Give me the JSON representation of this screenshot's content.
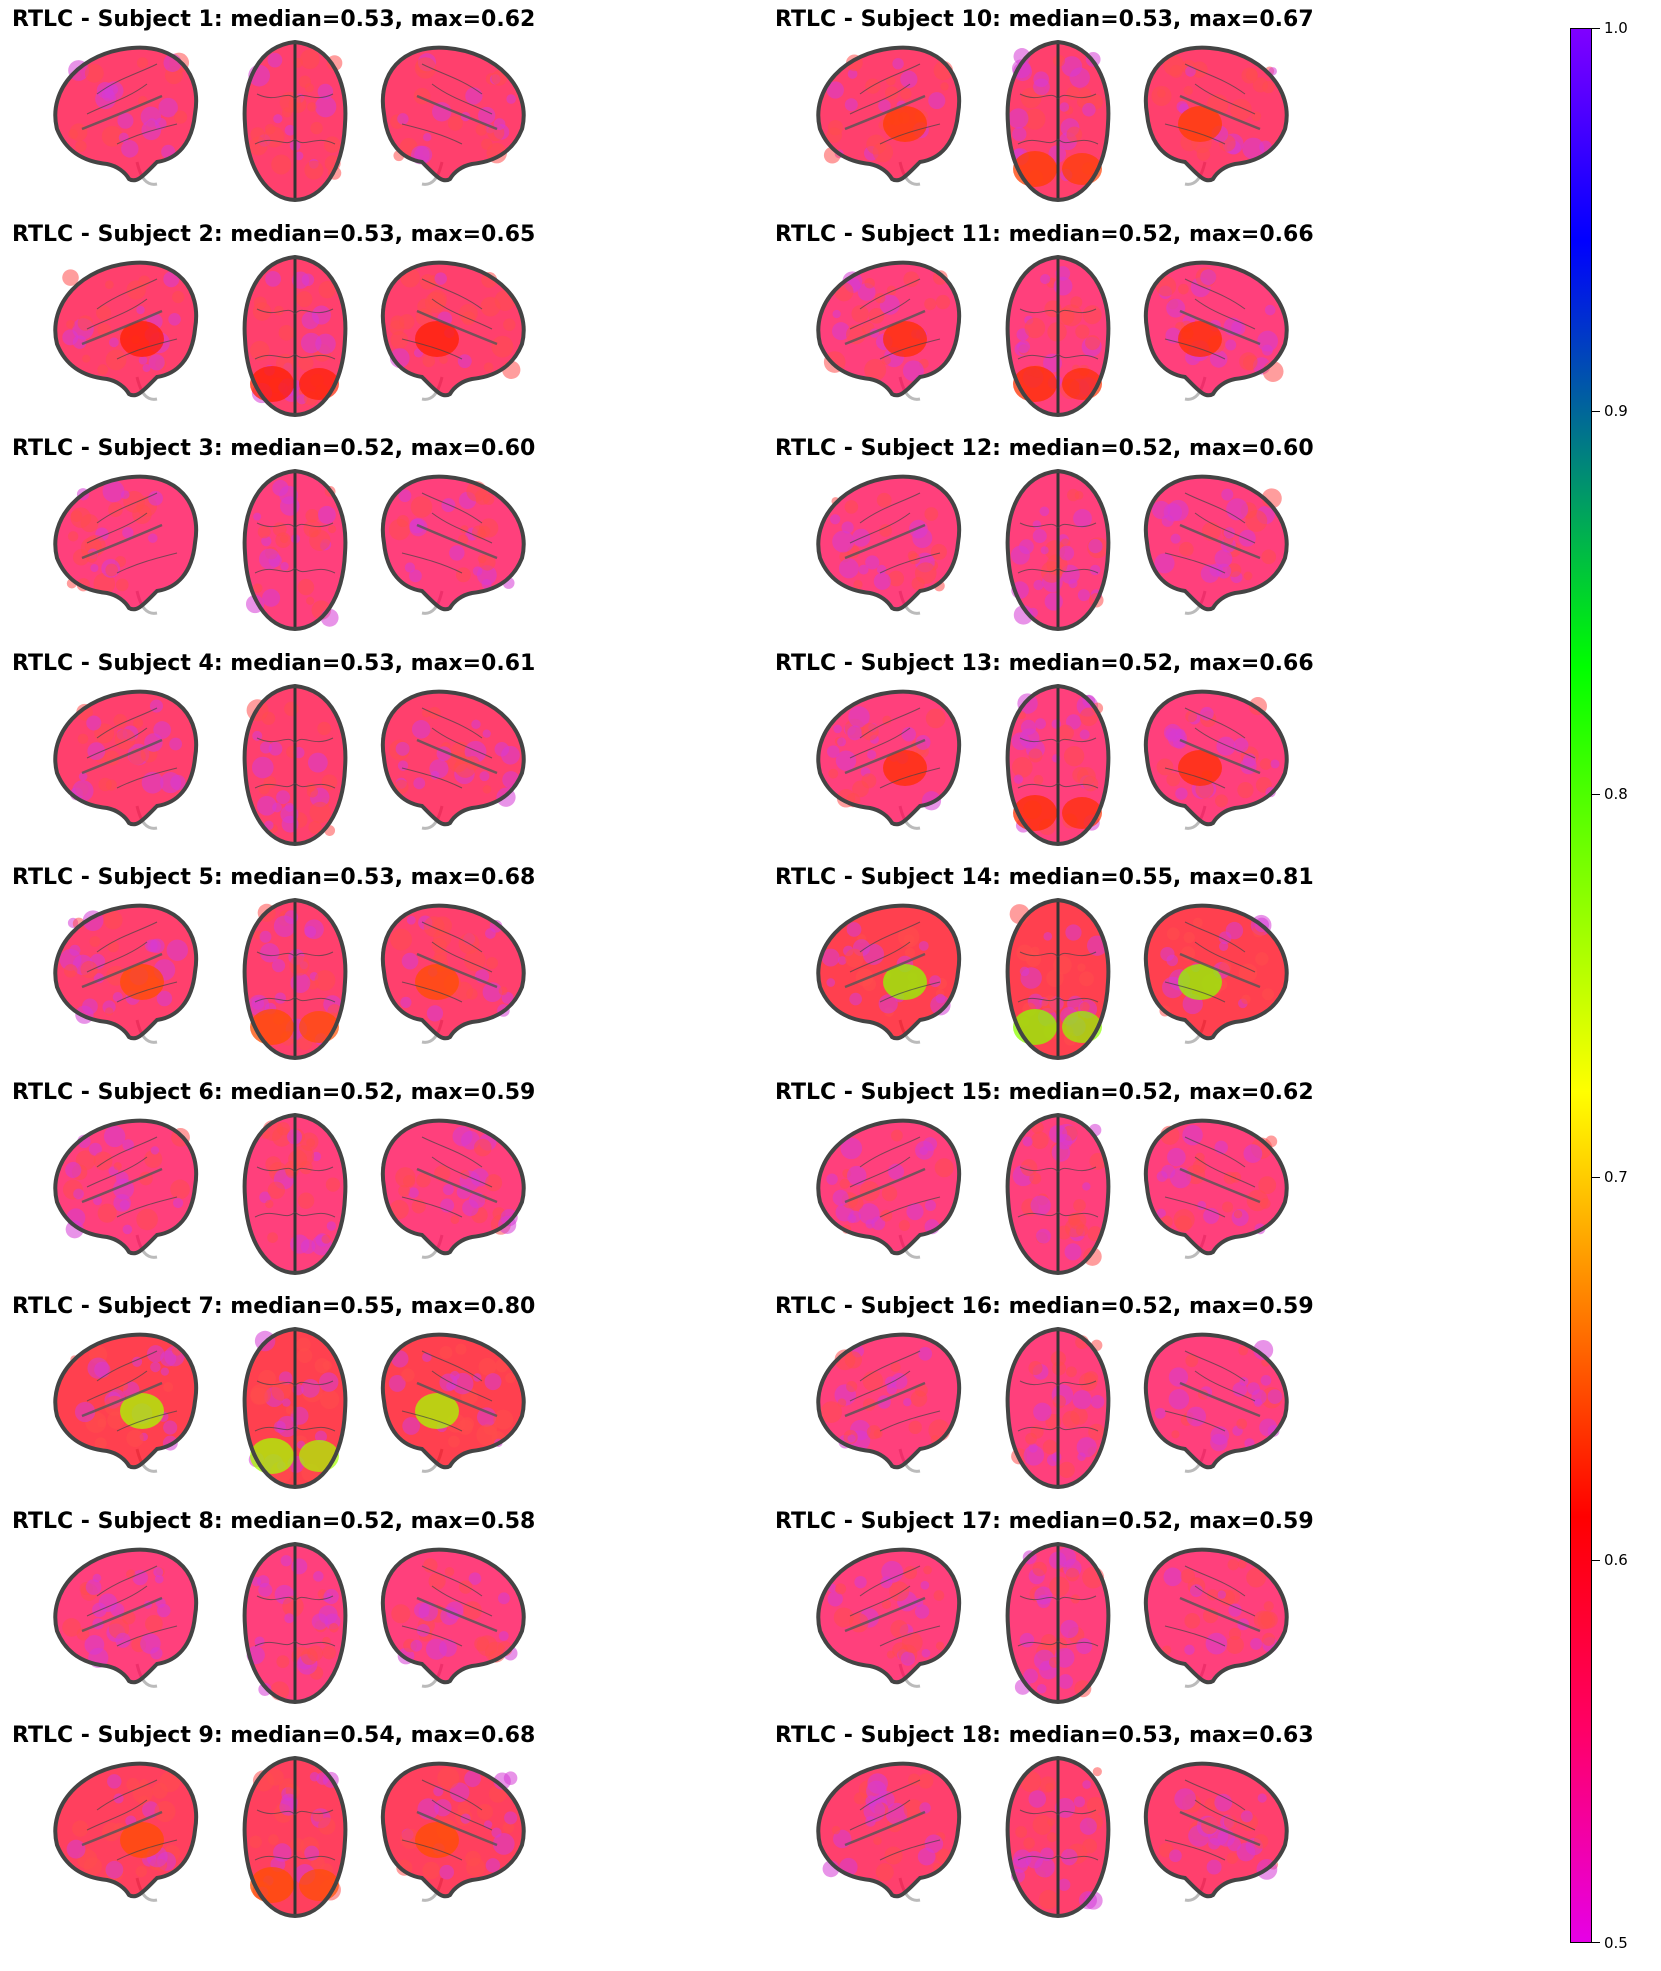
{
  "panels": [
    {
      "title": "RTLC - Subject 1: median=0.53, max=0.62",
      "median": 0.53,
      "max": 0.62
    },
    {
      "title": "RTLC - Subject 2: median=0.53, max=0.65",
      "median": 0.53,
      "max": 0.65
    },
    {
      "title": "RTLC - Subject 3: median=0.52, max=0.60",
      "median": 0.52,
      "max": 0.6
    },
    {
      "title": "RTLC - Subject 4: median=0.53, max=0.61",
      "median": 0.53,
      "max": 0.61
    },
    {
      "title": "RTLC - Subject 5: median=0.53, max=0.68",
      "median": 0.53,
      "max": 0.68
    },
    {
      "title": "RTLC - Subject 6: median=0.52, max=0.59",
      "median": 0.52,
      "max": 0.59
    },
    {
      "title": "RTLC - Subject 7: median=0.55, max=0.80",
      "median": 0.55,
      "max": 0.8
    },
    {
      "title": "RTLC - Subject 8: median=0.52, max=0.58",
      "median": 0.52,
      "max": 0.58
    },
    {
      "title": "RTLC - Subject 9: median=0.54, max=0.68",
      "median": 0.54,
      "max": 0.68
    },
    {
      "title": "RTLC - Subject 10: median=0.53, max=0.67",
      "median": 0.53,
      "max": 0.67
    },
    {
      "title": "RTLC - Subject 11: median=0.52, max=0.66",
      "median": 0.52,
      "max": 0.66
    },
    {
      "title": "RTLC - Subject 12: median=0.52, max=0.60",
      "median": 0.52,
      "max": 0.6
    },
    {
      "title": "RTLC - Subject 13: median=0.52, max=0.66",
      "median": 0.52,
      "max": 0.66
    },
    {
      "title": "RTLC - Subject 14: median=0.55, max=0.81",
      "median": 0.55,
      "max": 0.81
    },
    {
      "title": "RTLC - Subject 15: median=0.52, max=0.62",
      "median": 0.52,
      "max": 0.62
    },
    {
      "title": "RTLC - Subject 16: median=0.52, max=0.59",
      "median": 0.52,
      "max": 0.59
    },
    {
      "title": "RTLC - Subject 17: median=0.52, max=0.59",
      "median": 0.52,
      "max": 0.59
    },
    {
      "title": "RTLC - Subject 18: median=0.53, max=0.63",
      "median": 0.53,
      "max": 0.63
    }
  ],
  "colorbar": {
    "min": 0.5,
    "max": 1.0,
    "ticks": [
      "0.5",
      "0.6",
      "0.7",
      "0.8",
      "0.9",
      "1.0"
    ],
    "colors": [
      "#e600e6",
      "#ff0066",
      "#ff0000",
      "#ff8000",
      "#ffff00",
      "#80ff00",
      "#00ff00",
      "#008080",
      "#0000ff",
      "#8000ff"
    ]
  }
}
